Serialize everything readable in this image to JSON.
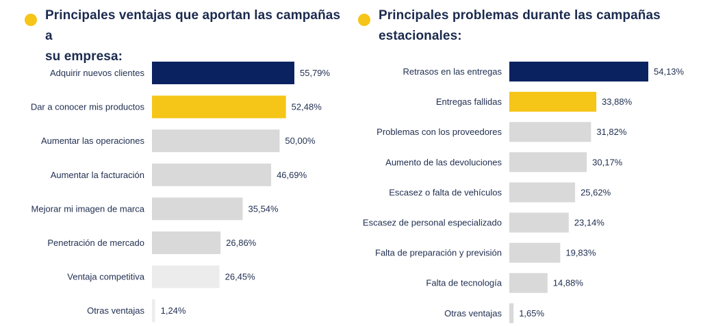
{
  "colors": {
    "dot": "#f5c518",
    "title": "#1b2a4e",
    "highlight_navy": "#0b2261",
    "highlight_yellow": "#f5c518",
    "bar_grey": "#d9d9d9",
    "bar_light": "#ececec",
    "text": "#1f2d4f"
  },
  "chart_data": [
    {
      "type": "bar",
      "orientation": "horizontal",
      "title": "Principales ventajas que aportan las campañas a su empresa:",
      "categories": [
        "Adquirir nuevos clientes",
        "Dar a conocer mis productos",
        "Aumentar las operaciones",
        "Aumentar la facturación",
        "Mejorar mi imagen de marca",
        "Penetración de mercado",
        "Ventaja competitiva",
        "Otras ventajas"
      ],
      "values": [
        55.79,
        52.48,
        50.0,
        46.69,
        35.54,
        26.86,
        26.45,
        1.24
      ],
      "value_labels": [
        "55,79%",
        "52,48%",
        "50,00%",
        "46,69%",
        "35,54%",
        "26,86%",
        "26,45%",
        "1,24%"
      ],
      "bar_colors": [
        "#0b2261",
        "#f5c518",
        "#d9d9d9",
        "#d9d9d9",
        "#d9d9d9",
        "#d9d9d9",
        "#ececec",
        "#ececec"
      ],
      "unit": "%"
    },
    {
      "type": "bar",
      "orientation": "horizontal",
      "title": "Principales problemas durante las campañas estacionales:",
      "categories": [
        "Retrasos en las entregas",
        "Entregas fallidas",
        "Problemas con los proveedores",
        "Aumento de las devoluciones",
        "Escasez o falta de vehículos",
        "Escasez de personal especializado",
        "Falta de preparación y previsión",
        "Falta de tecnología",
        "Otras ventajas"
      ],
      "values": [
        54.13,
        33.88,
        31.82,
        30.17,
        25.62,
        23.14,
        19.83,
        14.88,
        1.65
      ],
      "value_labels": [
        "54,13%",
        "33,88%",
        "31,82%",
        "30,17%",
        "25,62%",
        "23,14%",
        "19,83%",
        "14,88%",
        "1,65%"
      ],
      "bar_colors": [
        "#0b2261",
        "#f5c518",
        "#d9d9d9",
        "#d9d9d9",
        "#d9d9d9",
        "#d9d9d9",
        "#d9d9d9",
        "#d9d9d9",
        "#d9d9d9"
      ],
      "unit": "%"
    }
  ],
  "titles": {
    "left_line1": "Principales ventajas que aportan las campañas a",
    "left_line2": "su empresa:",
    "right_line1": "Principales problemas durante las campañas",
    "right_line2": "estacionales:"
  }
}
